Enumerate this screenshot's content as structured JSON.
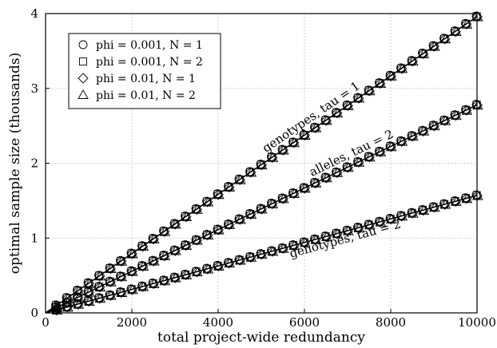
{
  "chart_data": {
    "type": "scatter",
    "title": "",
    "xlabel": "total project-wide redundancy",
    "ylabel": "optimal sample size (thousands)",
    "xlim": [
      0,
      10000
    ],
    "ylim": [
      0,
      4
    ],
    "xticks": [
      0,
      2000,
      4000,
      6000,
      8000,
      10000
    ],
    "yticks": [
      0,
      1,
      2,
      3,
      4
    ],
    "xtick_labels": [
      "0",
      "2000",
      "4000",
      "6000",
      "8000",
      "10000"
    ],
    "ytick_labels": [
      "0",
      "1",
      "2",
      "3",
      "4"
    ],
    "grid": true,
    "legend_position": "top-left",
    "legend": [
      {
        "label": "phi = 0.001, N = 1",
        "marker": "circle"
      },
      {
        "label": "phi = 0.001, N = 2",
        "marker": "square"
      },
      {
        "label": "phi = 0.01, N = 1",
        "marker": "diamond"
      },
      {
        "label": "phi = 0.01, N = 2",
        "marker": "triangle"
      }
    ],
    "curves": [
      {
        "label": "genotypes, tau = 1",
        "slope_per_unit_x": 0.000396,
        "x": [
          0,
          10000
        ],
        "y": [
          0,
          3.96
        ]
      },
      {
        "label": "alleles, tau = 2",
        "slope_per_unit_x": 0.000278,
        "x": [
          0,
          10000
        ],
        "y": [
          0,
          2.78
        ]
      },
      {
        "label": "genotypes, tau = 2",
        "slope_per_unit_x": 0.000157,
        "x": [
          0,
          10000
        ],
        "y": [
          0,
          1.57
        ]
      }
    ],
    "x_sample_step": 250
  }
}
